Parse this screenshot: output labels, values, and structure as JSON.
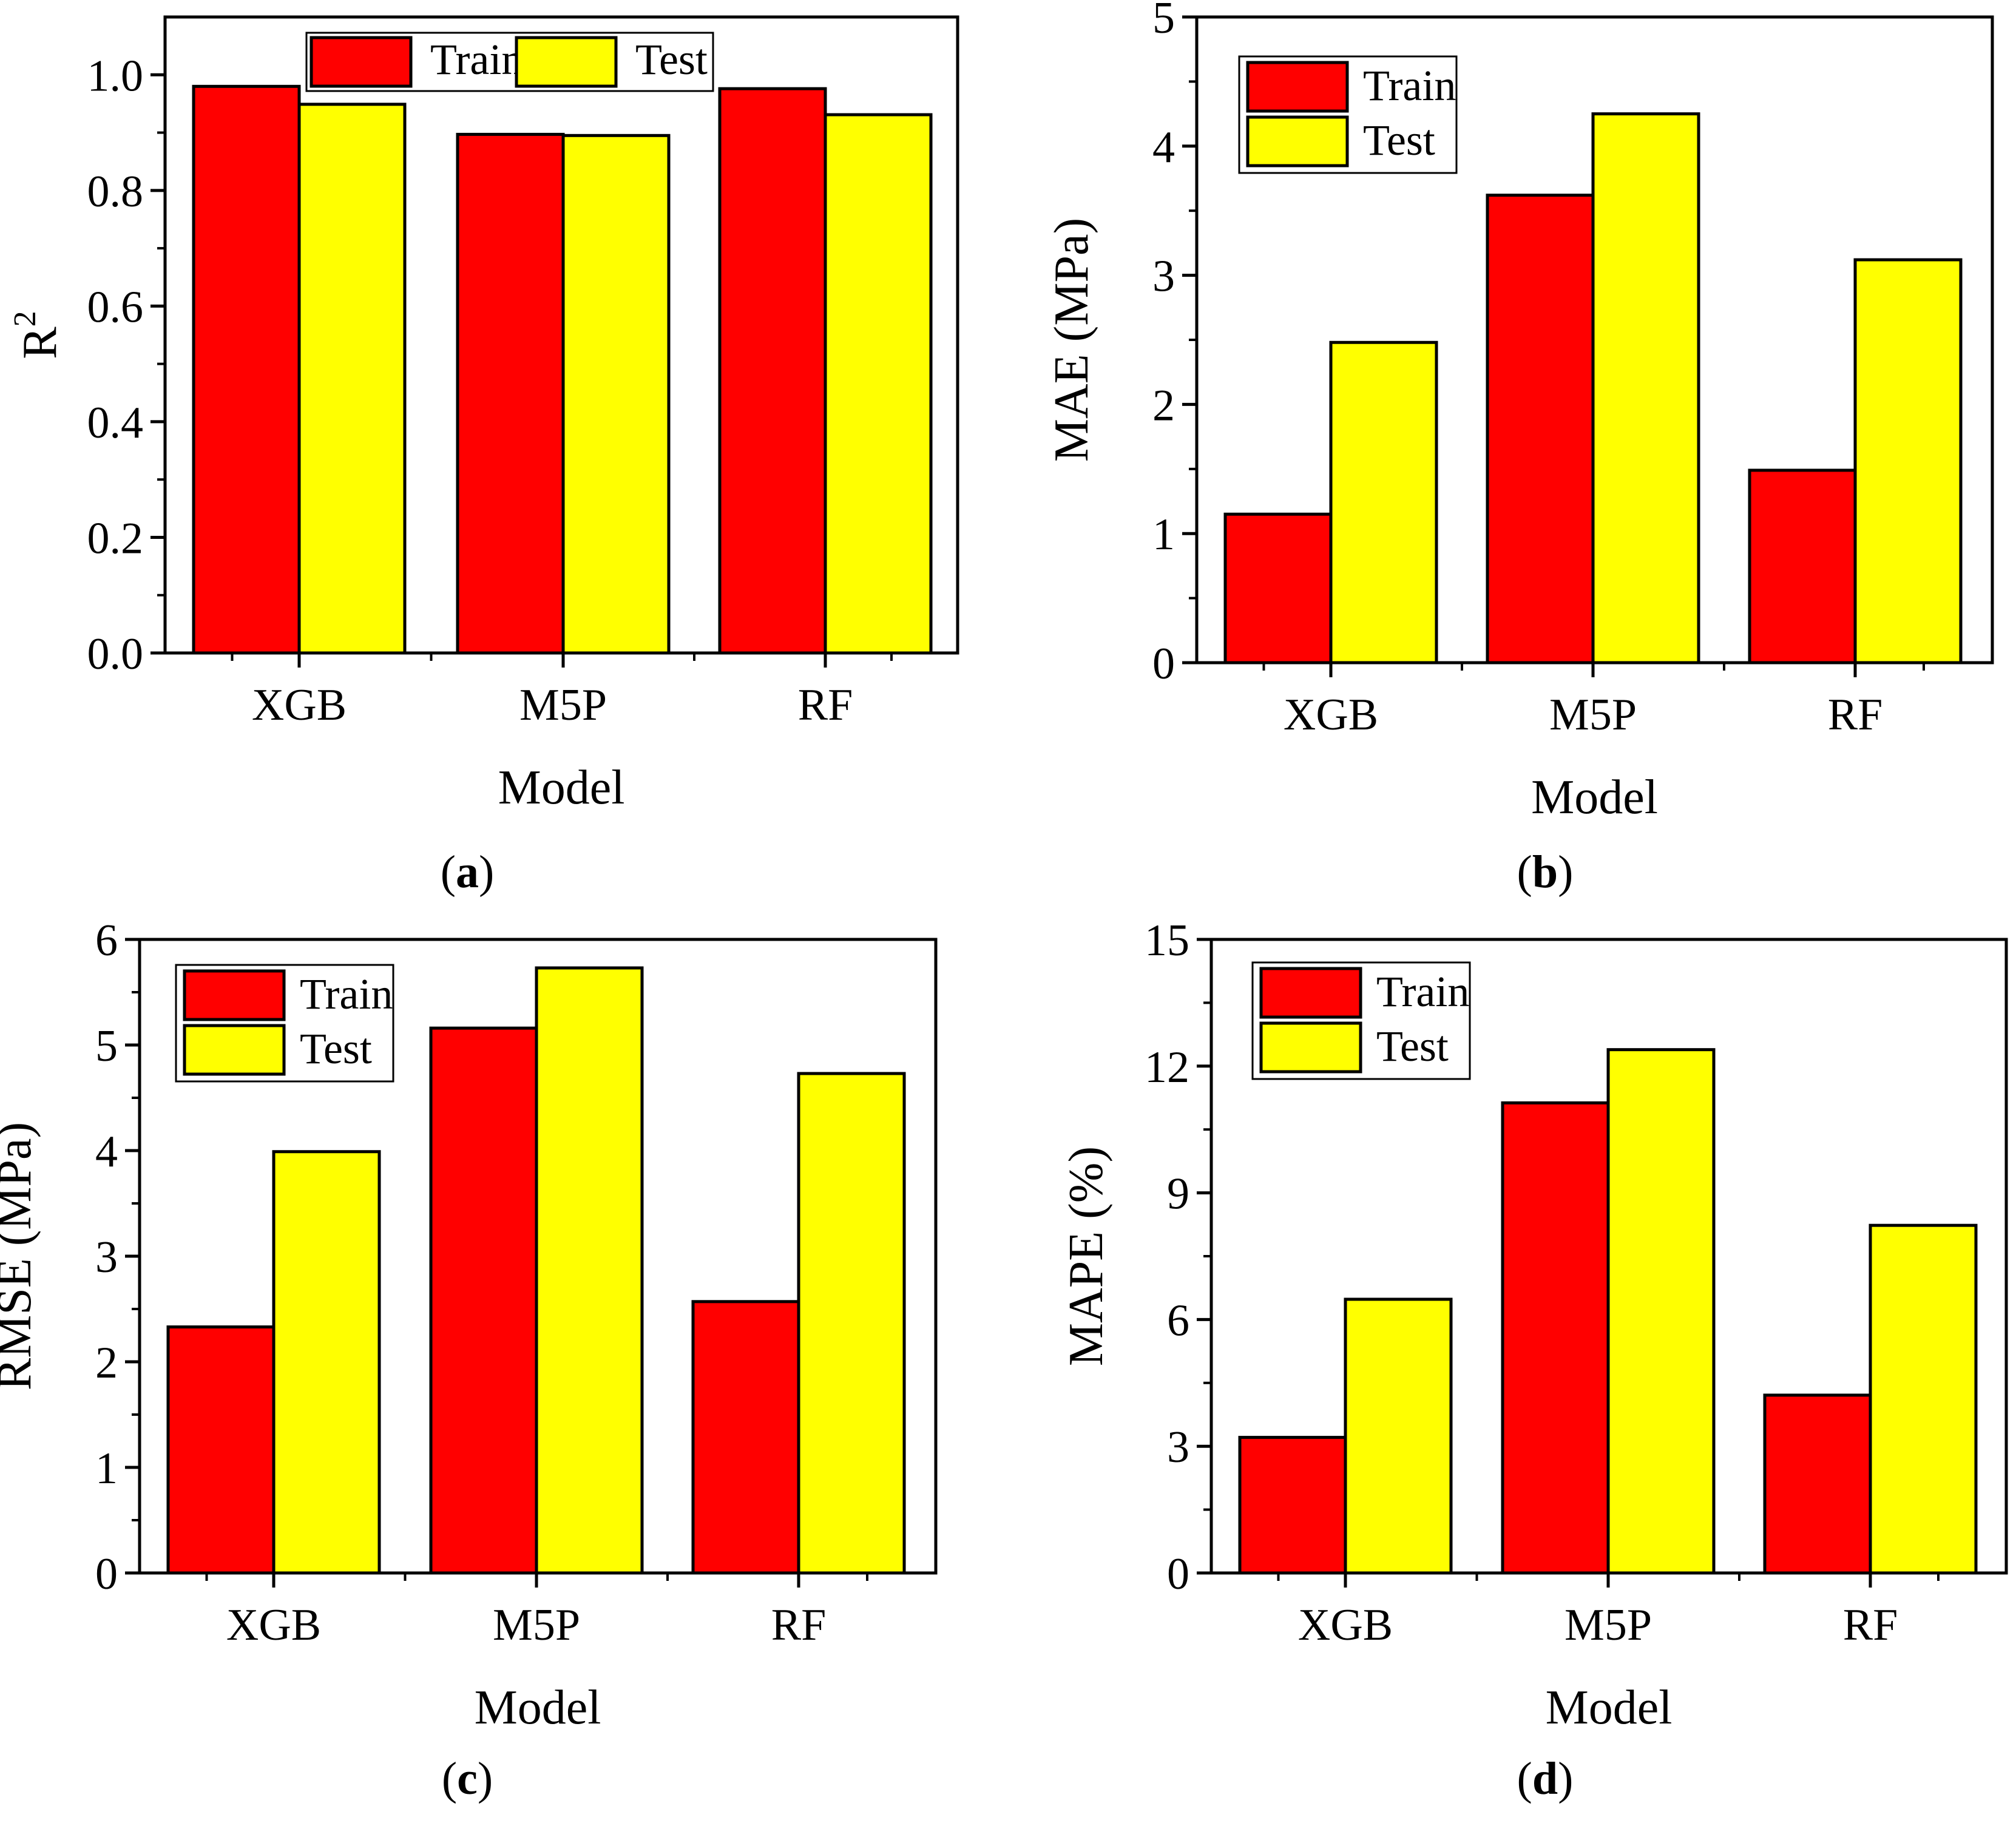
{
  "colors": {
    "train": "#ff0000",
    "test": "#ffff00",
    "stroke": "#000000"
  },
  "charts": [
    {
      "chart_data": {
        "type": "bar",
        "categories": [
          "XGB",
          "M5P",
          "RF"
        ],
        "series": [
          {
            "name": "Train",
            "values": [
              0.98,
              0.897,
              0.976
            ]
          },
          {
            "name": "Test",
            "values": [
              0.949,
              0.895,
              0.931
            ]
          }
        ],
        "xlabel": "Model",
        "ylabel_main": "R",
        "ylabel_sup": "2",
        "ylim": [
          0,
          1.1
        ],
        "yticks": [
          "0.0",
          "0.2",
          "0.4",
          "0.6",
          "0.8",
          "1.0"
        ],
        "legend": "top-center",
        "caption_open": "(",
        "caption_letter": "a",
        "caption_close": ")"
      }
    },
    {
      "chart_data": {
        "type": "bar",
        "categories": [
          "XGB",
          "M5P",
          "RF"
        ],
        "series": [
          {
            "name": "Train",
            "values": [
              1.15,
              3.62,
              1.49
            ]
          },
          {
            "name": "Test",
            "values": [
              2.48,
              4.25,
              3.12
            ]
          }
        ],
        "xlabel": "Model",
        "ylabel_main": "MAE (MPa)",
        "ylabel_sup": "",
        "ylim": [
          0,
          5
        ],
        "yticks": [
          "0",
          "1",
          "2",
          "3",
          "4",
          "5"
        ],
        "legend": "top-left",
        "caption_open": "(",
        "caption_letter": "b",
        "caption_close": ")"
      }
    },
    {
      "chart_data": {
        "type": "bar",
        "categories": [
          "XGB",
          "M5P",
          "RF"
        ],
        "series": [
          {
            "name": "Train",
            "values": [
              2.33,
              5.16,
              2.57
            ]
          },
          {
            "name": "Test",
            "values": [
              3.99,
              5.73,
              4.73
            ]
          }
        ],
        "xlabel": "Model",
        "ylabel_main": "RMSE (MPa)",
        "ylabel_sup": "",
        "ylim": [
          0,
          6
        ],
        "yticks": [
          "0",
          "1",
          "2",
          "3",
          "4",
          "5",
          "6"
        ],
        "legend": "top-left",
        "caption_open": "(",
        "caption_letter": "c",
        "caption_close": ")"
      }
    },
    {
      "chart_data": {
        "type": "bar",
        "categories": [
          "XGB",
          "M5P",
          "RF"
        ],
        "series": [
          {
            "name": "Train",
            "values": [
              3.21,
              11.13,
              4.21
            ]
          },
          {
            "name": "Test",
            "values": [
              6.48,
              12.39,
              8.23
            ]
          }
        ],
        "xlabel": "Model",
        "ylabel_main": "MAPE (%)",
        "ylabel_sup": "",
        "ylim": [
          0,
          15
        ],
        "yticks": [
          "0",
          "3",
          "6",
          "9",
          "12",
          "15"
        ],
        "legend": "top-left",
        "caption_open": "(",
        "caption_letter": "d",
        "caption_close": ")"
      }
    }
  ]
}
